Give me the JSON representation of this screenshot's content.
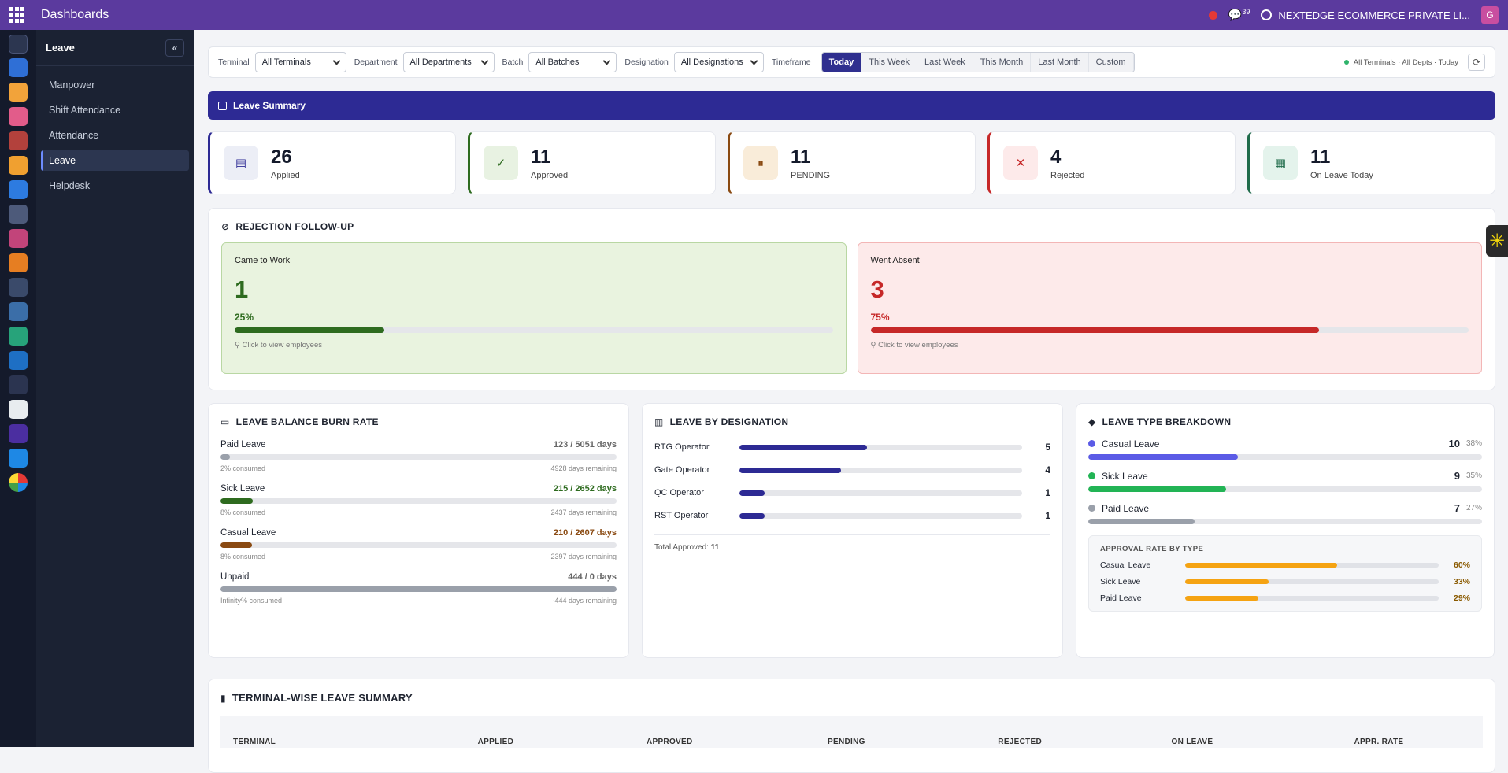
{
  "topbar": {
    "title": "Dashboards",
    "chat_count": "39",
    "company": "NEXTEDGE ECOMMERCE PRIVATE LI...",
    "avatar": "G"
  },
  "sidebar": {
    "title": "Leave",
    "collapse_icon": "«",
    "items": [
      {
        "label": "Manpower",
        "active": false
      },
      {
        "label": "Shift Attendance",
        "active": false
      },
      {
        "label": "Attendance",
        "active": false
      },
      {
        "label": "Leave",
        "active": true
      },
      {
        "label": "Helpdesk",
        "active": false
      }
    ]
  },
  "filters": {
    "terminal_label": "Terminal",
    "terminal_value": "All Terminals",
    "department_label": "Department",
    "department_value": "All Departments",
    "batch_label": "Batch",
    "batch_value": "All Batches",
    "designation_label": "Designation",
    "designation_value": "All Designations",
    "timeframe_label": "Timeframe",
    "timeframes": [
      "Today",
      "This Week",
      "Last Week",
      "This Month",
      "Last Month",
      "Custom"
    ],
    "status": "All Terminals · All Depts · Today"
  },
  "banner": {
    "title": "Leave Summary"
  },
  "kpis": [
    {
      "value": "26",
      "label": "Applied",
      "color": "#2d2a94"
    },
    {
      "value": "11",
      "label": "Approved",
      "color": "#2e6b1f"
    },
    {
      "value": "11",
      "label": "PENDING",
      "color": "#8a4a12"
    },
    {
      "value": "4",
      "label": "Rejected",
      "color": "#c62828"
    },
    {
      "value": "11",
      "label": "On Leave Today",
      "color": "#1f6b4a"
    }
  ],
  "rejection": {
    "title": "REJECTION FOLLOW-UP",
    "came": {
      "title": "Came to Work",
      "value": "1",
      "pct": "25%",
      "fraction": 0.25,
      "hint": "Click to view employees"
    },
    "absent": {
      "title": "Went Absent",
      "value": "3",
      "pct": "75%",
      "fraction": 0.75,
      "hint": "Click to view employees"
    }
  },
  "burn": {
    "title": "LEAVE BALANCE BURN RATE",
    "items": [
      {
        "name": "Paid Leave",
        "value": "123 / 5051 days",
        "consumed": "2% consumed",
        "remaining": "4928 days remaining",
        "fraction": 0.024,
        "color": "#9aa0aa",
        "vcolor": "#666"
      },
      {
        "name": "Sick Leave",
        "value": "215 / 2652 days",
        "consumed": "8% consumed",
        "remaining": "2437 days remaining",
        "fraction": 0.081,
        "color": "#2e6b1f",
        "vcolor": "#2e6b1f"
      },
      {
        "name": "Casual Leave",
        "value": "210 / 2607 days",
        "consumed": "8% consumed",
        "remaining": "2397 days remaining",
        "fraction": 0.08,
        "color": "#8a4a12",
        "vcolor": "#8a4a12"
      },
      {
        "name": "Unpaid",
        "value": "444 / 0 days",
        "consumed": "Infinity% consumed",
        "remaining": "-444 days remaining",
        "fraction": 1.0,
        "color": "#9aa0aa",
        "vcolor": "#666"
      }
    ]
  },
  "designation": {
    "title": "LEAVE BY DESIGNATION",
    "rows": [
      {
        "name": "RTG Operator",
        "value": "5",
        "fraction": 0.45
      },
      {
        "name": "Gate Operator",
        "value": "4",
        "fraction": 0.36
      },
      {
        "name": "QC Operator",
        "value": "1",
        "fraction": 0.09
      },
      {
        "name": "RST Operator",
        "value": "1",
        "fraction": 0.09
      }
    ],
    "total_label": "Total Approved:",
    "total_value": "11"
  },
  "leave_type": {
    "title": "LEAVE TYPE BREAKDOWN",
    "rows": [
      {
        "name": "Casual Leave",
        "count": "10",
        "pct": "38%",
        "fraction": 0.38,
        "color": "#5b5be6"
      },
      {
        "name": "Sick Leave",
        "count": "9",
        "pct": "35%",
        "fraction": 0.35,
        "color": "#22b455"
      },
      {
        "name": "Paid Leave",
        "count": "7",
        "pct": "27%",
        "fraction": 0.27,
        "color": "#9aa0aa"
      }
    ],
    "approval_title": "APPROVAL RATE BY TYPE",
    "approval": [
      {
        "name": "Casual Leave",
        "pct": "60%",
        "fraction": 0.6
      },
      {
        "name": "Sick Leave",
        "pct": "33%",
        "fraction": 0.33
      },
      {
        "name": "Paid Leave",
        "pct": "29%",
        "fraction": 0.29
      }
    ],
    "approval_color": "#f5a312"
  },
  "terminal_table": {
    "title": "TERMINAL-WISE LEAVE SUMMARY",
    "columns": [
      "TERMINAL",
      "APPLIED",
      "APPROVED",
      "PENDING",
      "REJECTED",
      "ON LEAVE",
      "APPR. RATE"
    ]
  }
}
